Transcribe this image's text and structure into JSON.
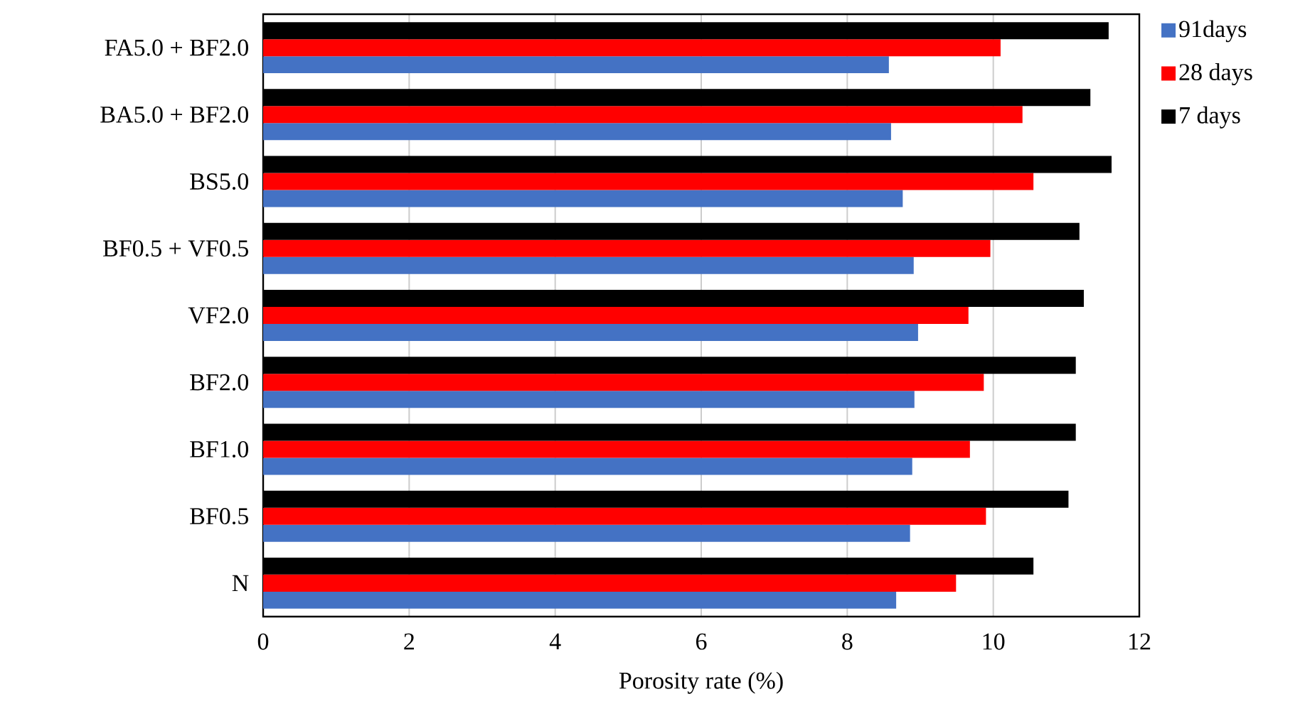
{
  "chart_data": {
    "type": "bar",
    "orientation": "horizontal",
    "xlabel": "Porosity rate (%)",
    "categories": [
      "FA5.0 + BF2.0",
      "BA5.0 + BF2.0",
      "BS5.0",
      "BF0.5 + VF0.5",
      "VF2.0",
      "BF2.0",
      "BF1.0",
      "BF0.5",
      "N"
    ],
    "series": [
      {
        "name": "91days",
        "color": "#4472c4",
        "values": [
          8.57,
          8.6,
          8.76,
          8.91,
          8.97,
          8.92,
          8.89,
          8.86,
          8.67
        ]
      },
      {
        "name": "28 days",
        "color": "#ff0000",
        "values": [
          10.1,
          10.4,
          10.55,
          9.96,
          9.66,
          9.87,
          9.68,
          9.9,
          9.49
        ]
      },
      {
        "name": "7 days",
        "color": "#000000",
        "values": [
          11.58,
          11.33,
          11.62,
          11.18,
          11.24,
          11.13,
          11.13,
          11.03,
          10.55
        ]
      }
    ],
    "xlim": [
      0,
      12
    ],
    "xticks": [
      0,
      2,
      4,
      6,
      8,
      10,
      12
    ],
    "grid": "x",
    "legend": "right"
  }
}
